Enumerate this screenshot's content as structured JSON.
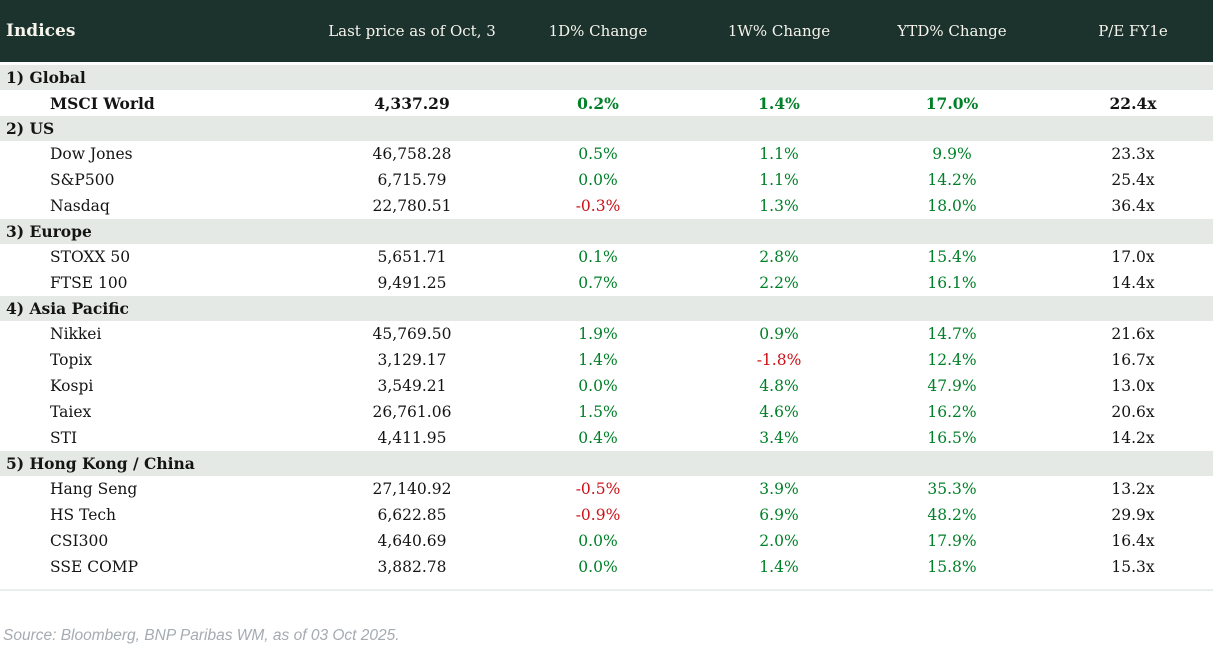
{
  "header": {
    "title": "Indices",
    "columns": [
      "Last price as of Oct, 3",
      "1D% Change",
      "1W% Change",
      "YTD% Change",
      "P/E FY1e"
    ]
  },
  "sections": [
    {
      "label": "1) Global",
      "rows": [
        {
          "name": "MSCI World",
          "values": [
            "4,337.29",
            "0.2%",
            "1.4%",
            "17.0%",
            "22.4x"
          ],
          "emphasis": true
        }
      ]
    },
    {
      "label": "2) US",
      "rows": [
        {
          "name": "Dow Jones",
          "values": [
            "46,758.28",
            "0.5%",
            "1.1%",
            "9.9%",
            "23.3x"
          ]
        },
        {
          "name": "S&P500",
          "values": [
            "6,715.79",
            "0.0%",
            "1.1%",
            "14.2%",
            "25.4x"
          ]
        },
        {
          "name": "Nasdaq",
          "values": [
            "22,780.51",
            "-0.3%",
            "1.3%",
            "18.0%",
            "36.4x"
          ]
        }
      ]
    },
    {
      "label": "3) Europe",
      "rows": [
        {
          "name": "STOXX 50",
          "values": [
            "5,651.71",
            "0.1%",
            "2.8%",
            "15.4%",
            "17.0x"
          ]
        },
        {
          "name": "FTSE 100",
          "values": [
            "9,491.25",
            "0.7%",
            "2.2%",
            "16.1%",
            "14.4x"
          ]
        }
      ]
    },
    {
      "label": "4) Asia Pacific",
      "rows": [
        {
          "name": "Nikkei",
          "values": [
            "45,769.50",
            "1.9%",
            "0.9%",
            "14.7%",
            "21.6x"
          ]
        },
        {
          "name": "Topix",
          "values": [
            "3,129.17",
            "1.4%",
            "-1.8%",
            "12.4%",
            "16.7x"
          ]
        },
        {
          "name": "Kospi",
          "values": [
            "3,549.21",
            "0.0%",
            "4.8%",
            "47.9%",
            "13.0x"
          ]
        },
        {
          "name": "Taiex",
          "values": [
            "26,761.06",
            "1.5%",
            "4.6%",
            "16.2%",
            "20.6x"
          ]
        },
        {
          "name": "STI",
          "values": [
            "4,411.95",
            "0.4%",
            "3.4%",
            "16.5%",
            "14.2x"
          ]
        }
      ]
    },
    {
      "label": "5) Hong Kong / China",
      "rows": [
        {
          "name": "Hang Seng",
          "values": [
            "27,140.92",
            "-0.5%",
            "3.9%",
            "35.3%",
            "13.2x"
          ]
        },
        {
          "name": "HS Tech",
          "values": [
            "6,622.85",
            "-0.9%",
            "6.9%",
            "48.2%",
            "29.9x"
          ]
        },
        {
          "name": "CSI300",
          "values": [
            "4,640.69",
            "0.0%",
            "2.0%",
            "17.9%",
            "16.4x"
          ]
        },
        {
          "name": "SSE COMP",
          "values": [
            "3,882.78",
            "0.0%",
            "1.4%",
            "15.8%",
            "15.3x"
          ]
        }
      ]
    }
  ],
  "footer": {
    "source": "Source: Bloomberg, BNP Paribas WM, as of 03 Oct 2025."
  },
  "colors": {
    "header_bg": "#1b322d",
    "section_bg": "#e4e9e5",
    "positive": "#008028",
    "negative": "#cc1117"
  },
  "chart_data": {
    "type": "table",
    "title": "Indices",
    "columns": [
      "Indices",
      "Last price as of Oct, 3",
      "1D% Change",
      "1W% Change",
      "YTD% Change",
      "P/E FY1e"
    ],
    "rows": [
      {
        "section": "1) Global",
        "index": "MSCI World",
        "last_price": 4337.29,
        "d1_pct": 0.2,
        "w1_pct": 1.4,
        "ytd_pct": 17.0,
        "pe_fy1e": 22.4
      },
      {
        "section": "2) US",
        "index": "Dow Jones",
        "last_price": 46758.28,
        "d1_pct": 0.5,
        "w1_pct": 1.1,
        "ytd_pct": 9.9,
        "pe_fy1e": 23.3
      },
      {
        "section": "2) US",
        "index": "S&P500",
        "last_price": 6715.79,
        "d1_pct": 0.0,
        "w1_pct": 1.1,
        "ytd_pct": 14.2,
        "pe_fy1e": 25.4
      },
      {
        "section": "2) US",
        "index": "Nasdaq",
        "last_price": 22780.51,
        "d1_pct": -0.3,
        "w1_pct": 1.3,
        "ytd_pct": 18.0,
        "pe_fy1e": 36.4
      },
      {
        "section": "3) Europe",
        "index": "STOXX 50",
        "last_price": 5651.71,
        "d1_pct": 0.1,
        "w1_pct": 2.8,
        "ytd_pct": 15.4,
        "pe_fy1e": 17.0
      },
      {
        "section": "3) Europe",
        "index": "FTSE 100",
        "last_price": 9491.25,
        "d1_pct": 0.7,
        "w1_pct": 2.2,
        "ytd_pct": 16.1,
        "pe_fy1e": 14.4
      },
      {
        "section": "4) Asia Pacific",
        "index": "Nikkei",
        "last_price": 45769.5,
        "d1_pct": 1.9,
        "w1_pct": 0.9,
        "ytd_pct": 14.7,
        "pe_fy1e": 21.6
      },
      {
        "section": "4) Asia Pacific",
        "index": "Topix",
        "last_price": 3129.17,
        "d1_pct": 1.4,
        "w1_pct": -1.8,
        "ytd_pct": 12.4,
        "pe_fy1e": 16.7
      },
      {
        "section": "4) Asia Pacific",
        "index": "Kospi",
        "last_price": 3549.21,
        "d1_pct": 0.0,
        "w1_pct": 4.8,
        "ytd_pct": 47.9,
        "pe_fy1e": 13.0
      },
      {
        "section": "4) Asia Pacific",
        "index": "Taiex",
        "last_price": 26761.06,
        "d1_pct": 1.5,
        "w1_pct": 4.6,
        "ytd_pct": 16.2,
        "pe_fy1e": 20.6
      },
      {
        "section": "4) Asia Pacific",
        "index": "STI",
        "last_price": 4411.95,
        "d1_pct": 0.4,
        "w1_pct": 3.4,
        "ytd_pct": 16.5,
        "pe_fy1e": 14.2
      },
      {
        "section": "5) Hong Kong / China",
        "index": "Hang Seng",
        "last_price": 27140.92,
        "d1_pct": -0.5,
        "w1_pct": 3.9,
        "ytd_pct": 35.3,
        "pe_fy1e": 13.2
      },
      {
        "section": "5) Hong Kong / China",
        "index": "HS Tech",
        "last_price": 6622.85,
        "d1_pct": -0.9,
        "w1_pct": 6.9,
        "ytd_pct": 48.2,
        "pe_fy1e": 29.9
      },
      {
        "section": "5) Hong Kong / China",
        "index": "CSI300",
        "last_price": 4640.69,
        "d1_pct": 0.0,
        "w1_pct": 2.0,
        "ytd_pct": 17.9,
        "pe_fy1e": 16.4
      },
      {
        "section": "5) Hong Kong / China",
        "index": "SSE COMP",
        "last_price": 3882.78,
        "d1_pct": 0.0,
        "w1_pct": 1.4,
        "ytd_pct": 15.8,
        "pe_fy1e": 15.3
      }
    ]
  }
}
